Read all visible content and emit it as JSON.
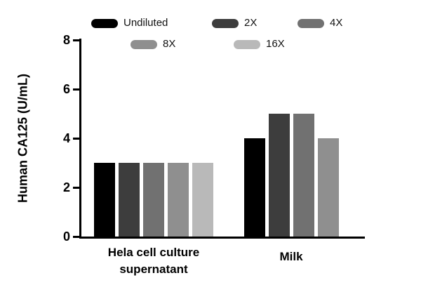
{
  "figure": {
    "background": "#ffffff",
    "axis_color": "#000000"
  },
  "legend": {
    "items": [
      {
        "label": "Undiluted",
        "color": "#000000"
      },
      {
        "label": "2X",
        "color": "#3d3d3d"
      },
      {
        "label": "4X",
        "color": "#717171"
      },
      {
        "label": "8X",
        "color": "#8f8f8f"
      },
      {
        "label": "16X",
        "color": "#b9b9b9"
      }
    ]
  },
  "chart_data": {
    "type": "bar",
    "title": "",
    "ylabel": "Human CA125 (U/mL)",
    "xlabel": "",
    "ylim": [
      0,
      8
    ],
    "yticks": [
      0,
      2,
      4,
      6,
      8
    ],
    "grid": false,
    "legend_position": "top",
    "categories": [
      "Hela cell culture supernatant",
      "Milk"
    ],
    "series": [
      {
        "name": "Undiluted",
        "color": "#000000",
        "values": [
          3,
          4
        ]
      },
      {
        "name": "2X",
        "color": "#3d3d3d",
        "values": [
          3,
          5
        ]
      },
      {
        "name": "4X",
        "color": "#717171",
        "values": [
          3,
          5
        ]
      },
      {
        "name": "8X",
        "color": "#8f8f8f",
        "values": [
          3,
          4
        ]
      },
      {
        "name": "16X",
        "color": "#b9b9b9",
        "values": [
          3,
          null
        ]
      }
    ]
  }
}
